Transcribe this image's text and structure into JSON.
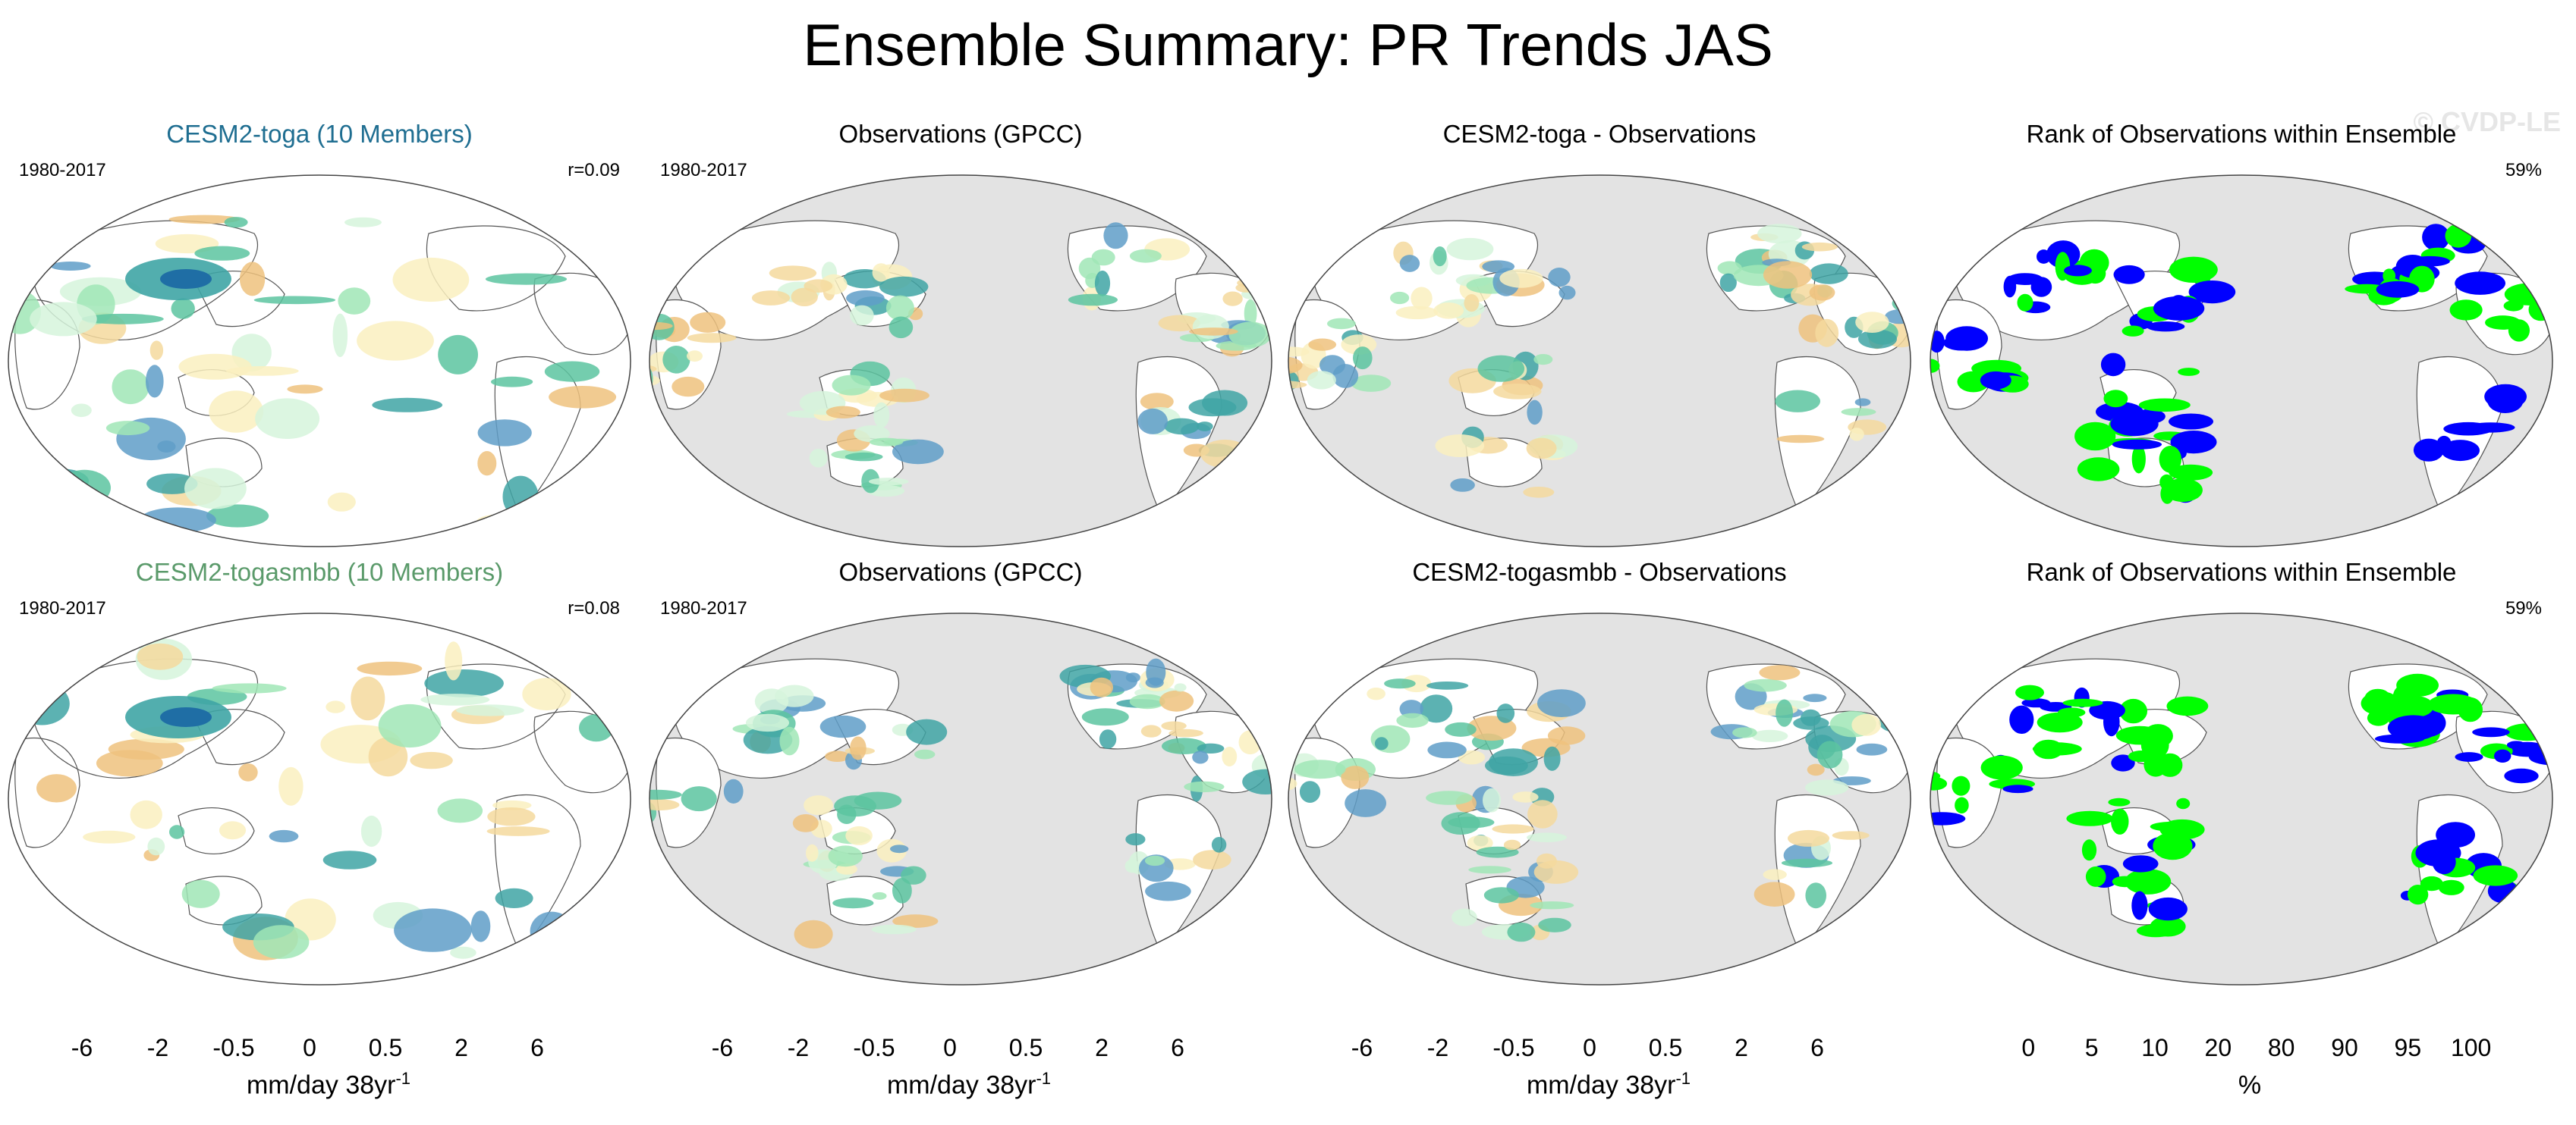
{
  "title": "Ensemble Summary: PR Trends JAS",
  "watermark": "© CVDP-LE",
  "panels": [
    {
      "title": "CESM2-toga (10 Members)",
      "left": "1980-2017",
      "right": "r=0.09",
      "kind": "model",
      "title_color": "#1f6e91"
    },
    {
      "title": "Observations (GPCC)",
      "left": "1980-2017",
      "right": "",
      "kind": "obs",
      "title_color": "#000000"
    },
    {
      "title": "CESM2-toga - Observations",
      "left": "",
      "right": "",
      "kind": "diff",
      "title_color": "#000000"
    },
    {
      "title": "Rank of Observations within Ensemble",
      "left": "",
      "right": "59%",
      "kind": "rank",
      "title_color": "#000000"
    },
    {
      "title": "CESM2-togasmbb (10 Members)",
      "left": "1980-2017",
      "right": "r=0.08",
      "kind": "model",
      "title_color": "#5a9a6a"
    },
    {
      "title": "Observations (GPCC)",
      "left": "1980-2017",
      "right": "",
      "kind": "obs",
      "title_color": "#000000"
    },
    {
      "title": "CESM2-togasmbb - Observations",
      "left": "",
      "right": "",
      "kind": "diff",
      "title_color": "#000000"
    },
    {
      "title": "Rank of Observations within Ensemble",
      "left": "",
      "right": "59%",
      "kind": "rank",
      "title_color": "#000000"
    }
  ],
  "colorbars": [
    {
      "unit": "mm/day 38yr",
      "unit_sup": "-1",
      "ticks": [
        "-6",
        "-2",
        "-0.5",
        "0",
        "0.5",
        "2",
        "6"
      ],
      "colors": [
        "#b3672b",
        "#cd8a48",
        "#e0a562",
        "#eec27e",
        "#f5d99d",
        "#faf0c0",
        "#ffffff",
        "#ffffff",
        "#d6f5dc",
        "#a0e6b6",
        "#5cc4a0",
        "#3fa5a5",
        "#5f9ec8",
        "#1f6ea5",
        "#083a5c"
      ]
    },
    {
      "unit": "mm/day 38yr",
      "unit_sup": "-1",
      "ticks": [
        "-6",
        "-2",
        "-0.5",
        "0",
        "0.5",
        "2",
        "6"
      ],
      "colors": [
        "#b3672b",
        "#cd8a48",
        "#e0a562",
        "#eec27e",
        "#f5d99d",
        "#faf0c0",
        "#ffffff",
        "#ffffff",
        "#d6f5dc",
        "#a0e6b6",
        "#5cc4a0",
        "#3fa5a5",
        "#5f9ec8",
        "#1f6ea5",
        "#083a5c"
      ]
    },
    {
      "unit": "mm/day 38yr",
      "unit_sup": "-1",
      "ticks": [
        "-6",
        "-2",
        "-0.5",
        "0",
        "0.5",
        "2",
        "6"
      ],
      "colors": [
        "#b3672b",
        "#cd8a48",
        "#e0a562",
        "#eec27e",
        "#f5d99d",
        "#faf0c0",
        "#ffffff",
        "#ffffff",
        "#d6f5dc",
        "#a0e6b6",
        "#5cc4a0",
        "#3fa5a5",
        "#5f9ec8",
        "#1f6ea5",
        "#083a5c"
      ]
    },
    {
      "unit": "%",
      "unit_sup": "",
      "ticks": [
        "0",
        "5",
        "10",
        "20",
        "80",
        "90",
        "95",
        "100"
      ],
      "colors": [
        "#0000ff",
        "#6b6bff",
        "#b0b0ff",
        "#e0e0ff",
        "#ffffff",
        "#e0ffe0",
        "#a0ffa0",
        "#55ff55",
        "#00ff00"
      ]
    }
  ],
  "chart_data": {
    "type": "heatmap",
    "title": "Ensemble Summary: PR Trends JAS",
    "period": "1980-2017",
    "variable": "Precipitation trend",
    "units": "mm/day 38yr-1",
    "panels": [
      {
        "row": 1,
        "col": 1,
        "name": "CESM2-toga (10 Members)",
        "pattern_corr": 0.09
      },
      {
        "row": 1,
        "col": 2,
        "name": "Observations (GPCC)"
      },
      {
        "row": 1,
        "col": 3,
        "name": "CESM2-toga - Observations"
      },
      {
        "row": 1,
        "col": 4,
        "name": "Rank of Observations within Ensemble",
        "pct": 59
      },
      {
        "row": 2,
        "col": 1,
        "name": "CESM2-togasmbb (10 Members)",
        "pattern_corr": 0.08
      },
      {
        "row": 2,
        "col": 2,
        "name": "Observations (GPCC)"
      },
      {
        "row": 2,
        "col": 3,
        "name": "CESM2-togasmbb - Observations"
      },
      {
        "row": 2,
        "col": 4,
        "name": "Rank of Observations within Ensemble",
        "pct": 59
      }
    ],
    "trend_levels": [
      -6,
      -4,
      -2,
      -1,
      -0.5,
      -0.2,
      0,
      0.2,
      0.5,
      1,
      2,
      4,
      6
    ],
    "trend_tick_labels": [
      "-6",
      "-2",
      "-0.5",
      "0",
      "0.5",
      "2",
      "6"
    ],
    "rank_levels": [
      0,
      5,
      10,
      20,
      80,
      90,
      95,
      100
    ],
    "rank_units": "%"
  }
}
